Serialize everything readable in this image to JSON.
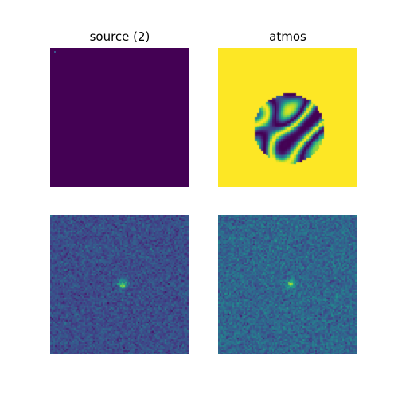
{
  "figure": {
    "panels": [
      {
        "id": "source",
        "title": "source (2)",
        "colormap": "viridis"
      },
      {
        "id": "atmos",
        "title": "atmos",
        "colormap": "viridis"
      },
      {
        "id": "image",
        "title": "",
        "colormap": "viridis"
      },
      {
        "id": "noisy",
        "title": "",
        "colormap": "viridis"
      }
    ]
  },
  "colors": {
    "viridis_min": "#440154",
    "viridis_max": "#fde725",
    "noise_mid": "#3b528b",
    "noise_high": "#21918c",
    "peak": "#5ec962"
  }
}
